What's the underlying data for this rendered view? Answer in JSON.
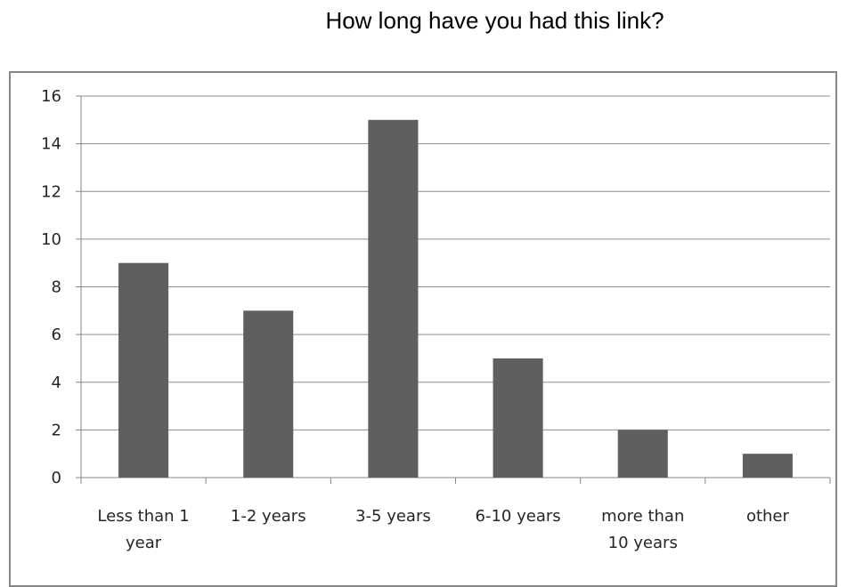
{
  "chart_data": {
    "type": "bar",
    "title": "How long have you had this link?",
    "categories": [
      [
        "Less than 1",
        "year"
      ],
      [
        "1-2 years"
      ],
      [
        "3-5 years"
      ],
      [
        "6-10 years"
      ],
      [
        "more than",
        "10 years"
      ],
      [
        "other"
      ]
    ],
    "values": [
      9,
      7,
      15,
      5,
      2,
      1
    ],
    "ylim": [
      0,
      16
    ],
    "yticks": [
      "0",
      "2",
      "4",
      "6",
      "8",
      "10",
      "12",
      "14",
      "16"
    ],
    "xlabel": "",
    "ylabel": "",
    "grid": true,
    "legend": "none",
    "bar_color": "#5f5f5f",
    "grid_color": "#8c8c8c",
    "axis_color": "#868686"
  }
}
